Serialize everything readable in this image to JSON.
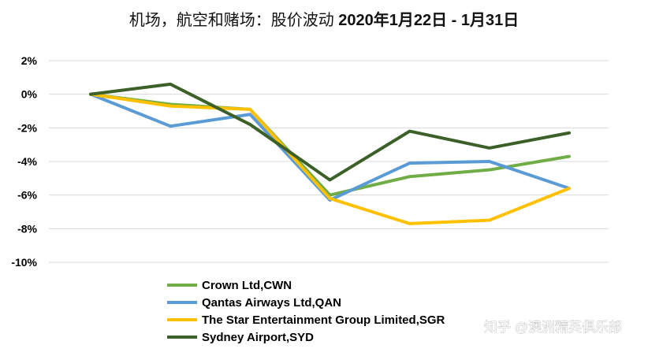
{
  "chart_data": {
    "type": "line",
    "title": "机场，航空和赌场：股价波动 2020年1月22日 - 1月31日",
    "title_parts": {
      "cn": "机场，航空和赌场：股价波动 ",
      "en": "2020年1月22日 - 1月31日"
    },
    "xlabel": "",
    "ylabel": "",
    "ylim": [
      -10,
      2
    ],
    "yticks": [
      2,
      0,
      -2,
      -4,
      -6,
      -8,
      -10
    ],
    "ytick_labels": [
      "2%",
      "0%",
      "-2%",
      "-4%",
      "-6%",
      "-8%",
      "-10%"
    ],
    "x": [
      0,
      1,
      2,
      3,
      4,
      5,
      6
    ],
    "grid": "horizontal",
    "legend_placement": "bottom-center",
    "series": [
      {
        "name": "Crown Ltd,CWN",
        "color": "#70ad47",
        "values": [
          0,
          -0.6,
          -0.9,
          -6.0,
          -4.9,
          -4.5,
          -3.7
        ]
      },
      {
        "name": "Qantas Airways Ltd,QAN",
        "color": "#5b9bd5",
        "values": [
          0,
          -1.9,
          -1.2,
          -6.3,
          -4.1,
          -4.0,
          -5.6
        ]
      },
      {
        "name": "The Star Entertainment Group Limited,SGR",
        "color": "#ffc000",
        "values": [
          0,
          -0.7,
          -0.9,
          -6.2,
          -7.7,
          -7.5,
          -5.6
        ]
      },
      {
        "name": "Sydney Airport,SYD",
        "color": "#3b6128",
        "values": [
          0,
          0.6,
          -1.8,
          -5.1,
          -2.2,
          -3.2,
          -2.3
        ]
      }
    ]
  },
  "watermark": "知乎 @澳洲精英俱乐部"
}
